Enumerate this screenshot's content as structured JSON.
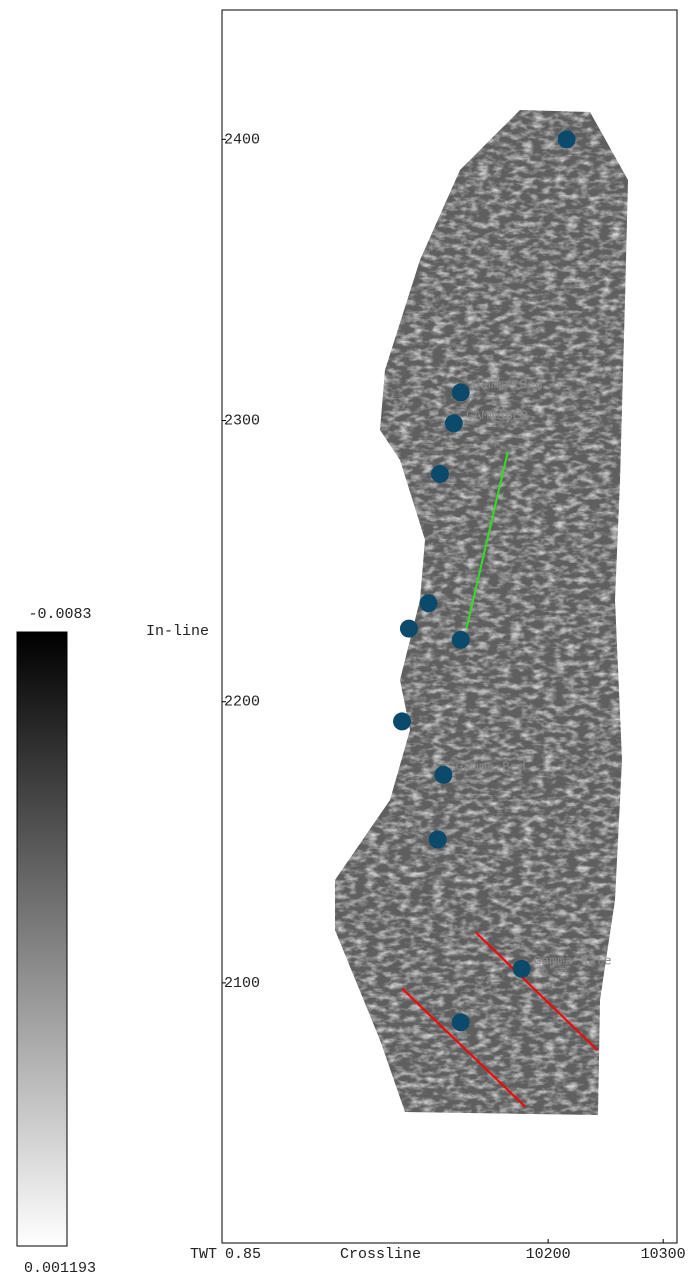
{
  "chart_data": {
    "type": "scatter",
    "y_label": "In-line",
    "x_label": "Crossline",
    "time_label": "TWT",
    "time_value": "0.85",
    "xlim": [
      9916.5,
      10312
    ],
    "ylim": [
      2007.5,
      2446
    ],
    "xticks": [
      10200,
      10300
    ],
    "yticks": [
      2100,
      2200,
      2300,
      2400
    ],
    "series": [
      {
        "color": "#0b4a6b",
        "x": [
          10216,
          10124,
          10118,
          10106,
          10096,
          10079,
          10124,
          10073,
          10109,
          10104,
          10177,
          10124
        ],
        "values": [
          2400,
          2310,
          2299,
          2281,
          2235,
          2226,
          2222,
          2193,
          2174,
          2151,
          2105,
          2086
        ]
      }
    ],
    "annotations": [
      "Gamma_Bed",
      "GAMMABED",
      "Gamma_Bed",
      "Gamma_Rate"
    ],
    "lines": [
      {
        "color": "#33dd22",
        "x": [
          10165,
          10129
        ],
        "values": [
          2289,
          2226
        ]
      },
      {
        "color": "#ff0000",
        "x": [
          10137,
          10243
        ],
        "values": [
          2118,
          2076
        ]
      },
      {
        "color": "#ff0000",
        "x": [
          10073,
          10180
        ],
        "values": [
          2098,
          2056
        ]
      }
    ],
    "colorbar": {
      "max": -0.0083,
      "min": 0.001193
    }
  }
}
